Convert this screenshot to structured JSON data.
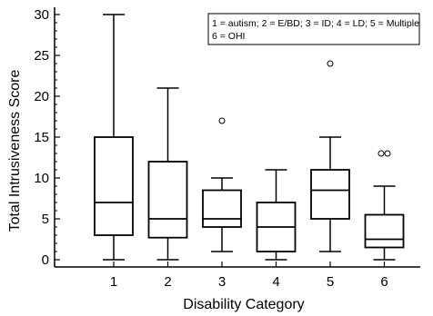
{
  "chart_data": {
    "type": "box",
    "xlabel": "Disability Category",
    "ylabel": "Total Intrusiveness Score",
    "ylim": [
      0,
      30
    ],
    "yticks": [
      0,
      5,
      10,
      15,
      20,
      25,
      30
    ],
    "grid": false,
    "categories": [
      "1",
      "2",
      "3",
      "4",
      "5",
      "6"
    ],
    "boxes": [
      {
        "category": "1",
        "whisker_low": 0,
        "q1": 3,
        "median": 7,
        "q3": 15,
        "whisker_high": 30,
        "outliers": []
      },
      {
        "category": "2",
        "whisker_low": 0,
        "q1": 2.7,
        "median": 5,
        "q3": 12,
        "whisker_high": 21,
        "outliers": []
      },
      {
        "category": "3",
        "whisker_low": 1,
        "q1": 4,
        "median": 5,
        "q3": 8.5,
        "whisker_high": 10,
        "outliers": [
          17
        ]
      },
      {
        "category": "4",
        "whisker_low": 0,
        "q1": 1,
        "median": 4,
        "q3": 7,
        "whisker_high": 11,
        "outliers": []
      },
      {
        "category": "5",
        "whisker_low": 1,
        "q1": 5,
        "median": 8.5,
        "q3": 11,
        "whisker_high": 15,
        "outliers": [
          24
        ]
      },
      {
        "category": "6",
        "whisker_low": 0,
        "q1": 1.5,
        "median": 2.5,
        "q3": 5.5,
        "whisker_high": 9,
        "outliers": [
          13,
          13
        ]
      }
    ],
    "legend": {
      "placement": "top-right",
      "lines": [
        "1 = autism; 2 = E/BD; 3 = ID; 4 = LD; 5 = Multiple",
        "6 = OHI"
      ]
    }
  }
}
